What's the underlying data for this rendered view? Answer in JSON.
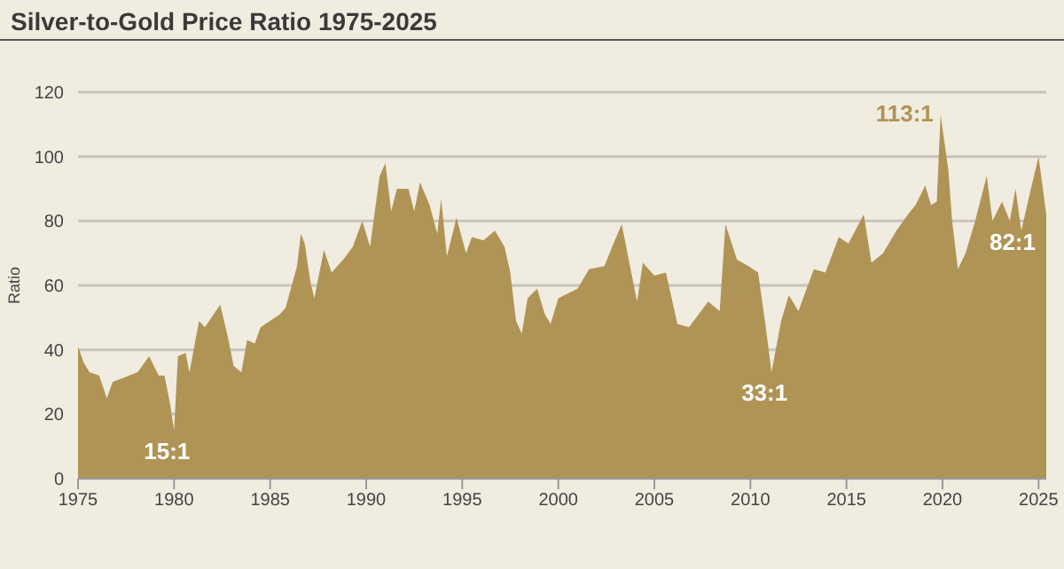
{
  "chart_data": {
    "type": "area",
    "title": "Silver-to-Gold Price Ratio 1975-2025",
    "ylabel": "Ratio",
    "x": [
      1975.0,
      1975.3,
      1975.6,
      1976.1,
      1976.5,
      1976.8,
      1978.1,
      1978.7,
      1979.2,
      1979.5,
      1979.8,
      1980.0,
      1980.2,
      1980.6,
      1980.8,
      1981.3,
      1981.6,
      1982.4,
      1982.8,
      1983.1,
      1983.5,
      1983.8,
      1984.2,
      1984.5,
      1985.5,
      1985.8,
      1986.4,
      1986.6,
      1986.8,
      1987.1,
      1987.3,
      1987.8,
      1988.2,
      1988.8,
      1989.3,
      1989.8,
      1990.2,
      1990.7,
      1991.0,
      1991.3,
      1991.6,
      1992.2,
      1992.5,
      1992.8,
      1993.3,
      1993.7,
      1993.9,
      1994.2,
      1994.7,
      1995.2,
      1995.5,
      1996.1,
      1996.7,
      1997.2,
      1997.5,
      1997.8,
      1998.1,
      1998.4,
      1998.9,
      1999.3,
      1999.6,
      2000.0,
      2001.0,
      2001.6,
      2002.4,
      2002.8,
      2003.3,
      2003.6,
      2004.1,
      2004.4,
      2005.0,
      2005.6,
      2006.2,
      2006.8,
      2007.8,
      2008.4,
      2008.7,
      2009.3,
      2009.9,
      2010.4,
      2010.8,
      2011.1,
      2011.6,
      2012.0,
      2012.5,
      2013.3,
      2013.9,
      2014.6,
      2015.1,
      2015.9,
      2016.3,
      2016.9,
      2017.6,
      2018.2,
      2018.6,
      2019.1,
      2019.4,
      2019.7,
      2019.9,
      2020.3,
      2020.5,
      2020.8,
      2021.2,
      2021.7,
      2022.3,
      2022.6,
      2023.1,
      2023.5,
      2023.8,
      2024.1,
      2024.6,
      2025.0,
      2025.4
    ],
    "series": [
      {
        "color": "#b09456",
        "values": [
          41,
          36,
          33,
          32,
          25,
          30,
          33,
          38,
          32,
          32,
          23,
          15,
          38,
          39,
          33,
          49,
          47,
          54,
          44,
          35,
          33,
          43,
          42,
          47,
          51,
          53,
          66,
          76,
          73,
          61,
          56,
          71,
          64,
          68,
          72,
          80,
          72,
          94,
          98,
          83,
          90,
          90,
          83,
          92,
          85,
          76,
          87,
          69,
          81,
          70,
          75,
          74,
          77,
          72,
          64,
          49,
          45,
          56,
          59,
          51,
          48,
          56,
          59,
          65,
          66,
          72,
          79,
          70,
          55,
          67,
          63,
          64,
          48,
          47,
          55,
          52,
          79,
          68,
          66,
          64,
          47,
          33,
          49,
          57,
          52,
          65,
          64,
          75,
          73,
          82,
          67,
          70,
          77,
          82,
          85,
          91,
          85,
          86,
          113,
          96,
          80,
          65,
          70,
          80,
          94,
          80,
          86,
          80,
          90,
          77,
          90,
          100,
          82
        ]
      }
    ],
    "xlim": [
      1975,
      2025.4
    ],
    "xticks": [
      1975,
      1980,
      1985,
      1990,
      1995,
      2000,
      2005,
      2010,
      2015,
      2020,
      2025
    ],
    "ylim": [
      0,
      120
    ],
    "yticks": [
      0,
      20,
      40,
      60,
      80,
      100,
      120
    ],
    "grid": "y",
    "annotations": [
      {
        "text": "15:1",
        "x": 1980.0,
        "y": 15
      },
      {
        "text": "33:1",
        "x": 2011.1,
        "y": 33
      },
      {
        "text": "113:1",
        "x": 2019.9,
        "y": 113
      },
      {
        "text": "82:1",
        "x": 2025.4,
        "y": 82
      }
    ]
  }
}
